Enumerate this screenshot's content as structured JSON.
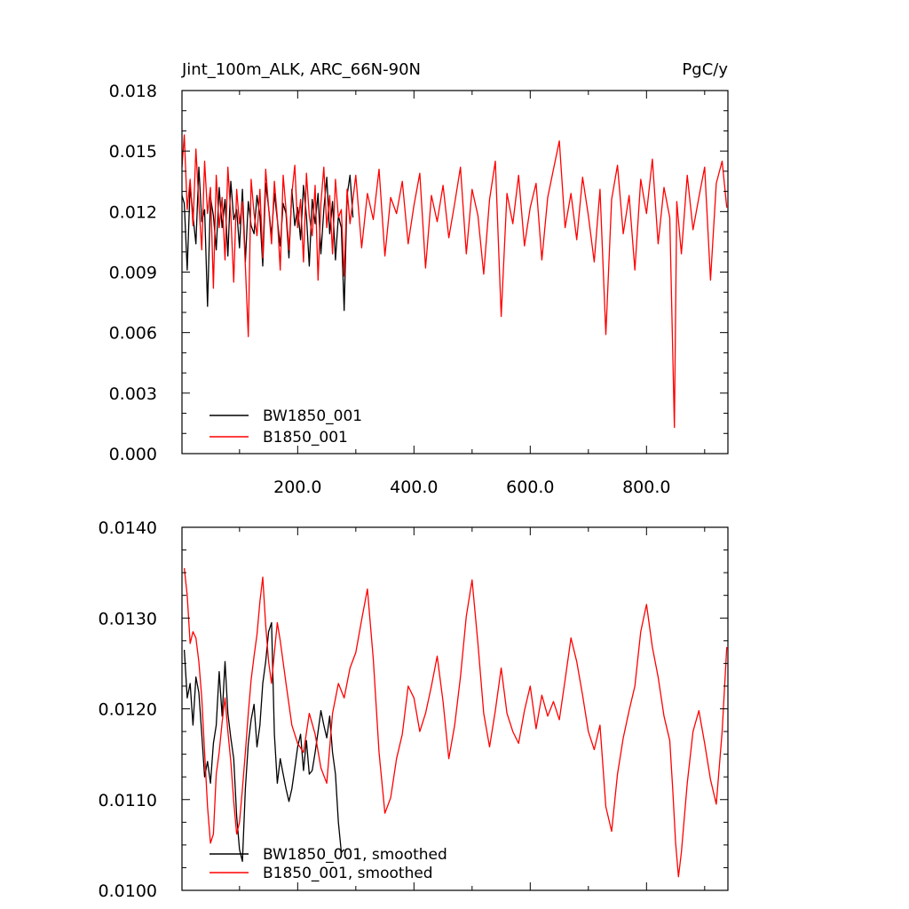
{
  "top_panel": {
    "title_left": "Jint_100m_ALK, ARC_66N-90N",
    "title_right": "PgC/y"
  },
  "colors": {
    "BW1850_001": "#000000",
    "B1850_001": "#ff0000"
  },
  "chart_data": [
    {
      "type": "line",
      "title": "Jint_100m_ALK, ARC_66N-90N",
      "units": "PgC/y",
      "xlim": [
        1,
        940
      ],
      "ylim": [
        0.0,
        0.018
      ],
      "x_ticks": [
        200,
        400,
        600,
        800
      ],
      "x_tick_labels": [
        "200.0",
        "400.0",
        "600.0",
        "800.0"
      ],
      "y_ticks": [
        0.0,
        0.003,
        0.006,
        0.009,
        0.012,
        0.015,
        0.018
      ],
      "y_tick_labels": [
        "0.000",
        "0.003",
        "0.006",
        "0.009",
        "0.012",
        "0.015",
        "0.018"
      ],
      "grid": false,
      "legend": "bottom-left",
      "series": [
        {
          "name": "BW1850_001",
          "x": [
            1,
            5,
            10,
            15,
            20,
            25,
            30,
            35,
            40,
            45,
            50,
            55,
            60,
            65,
            70,
            75,
            80,
            85,
            90,
            95,
            100,
            105,
            110,
            115,
            120,
            125,
            130,
            135,
            140,
            145,
            150,
            155,
            160,
            165,
            170,
            175,
            180,
            185,
            190,
            195,
            200,
            205,
            210,
            215,
            220,
            225,
            230,
            235,
            240,
            245,
            250,
            255,
            260,
            265,
            270,
            275,
            280,
            285,
            290,
            295
          ],
          "values": [
            0.0128,
            0.0124,
            0.0091,
            0.0133,
            0.0118,
            0.0104,
            0.0142,
            0.0115,
            0.0121,
            0.0073,
            0.0127,
            0.0118,
            0.0101,
            0.0132,
            0.0112,
            0.0126,
            0.0098,
            0.0135,
            0.0116,
            0.0121,
            0.0102,
            0.0131,
            0.0095,
            0.0125,
            0.0113,
            0.0109,
            0.0128,
            0.0118,
            0.0093,
            0.0134,
            0.0122,
            0.0108,
            0.0129,
            0.0116,
            0.0103,
            0.0124,
            0.0119,
            0.0097,
            0.0131,
            0.0113,
            0.0122,
            0.0106,
            0.0133,
            0.0118,
            0.0093,
            0.0126,
            0.0114,
            0.0129,
            0.0099,
            0.0121,
            0.0137,
            0.0109,
            0.0125,
            0.0096,
            0.0118,
            0.0112,
            0.0071,
            0.0128,
            0.0138,
            0.0117
          ]
        },
        {
          "name": "B1850_001",
          "x": [
            1,
            5,
            10,
            15,
            20,
            25,
            30,
            35,
            40,
            45,
            50,
            55,
            60,
            65,
            70,
            75,
            80,
            85,
            90,
            95,
            100,
            105,
            110,
            115,
            120,
            125,
            130,
            135,
            140,
            145,
            150,
            155,
            160,
            165,
            170,
            175,
            180,
            185,
            190,
            195,
            200,
            205,
            210,
            215,
            220,
            225,
            230,
            235,
            240,
            245,
            250,
            255,
            260,
            265,
            270,
            275,
            280,
            285,
            290,
            295,
            300,
            310,
            320,
            330,
            340,
            350,
            360,
            370,
            380,
            390,
            400,
            410,
            420,
            430,
            440,
            450,
            460,
            470,
            480,
            490,
            500,
            510,
            520,
            530,
            540,
            550,
            560,
            570,
            580,
            590,
            600,
            610,
            620,
            630,
            640,
            650,
            660,
            670,
            680,
            690,
            700,
            710,
            720,
            730,
            740,
            750,
            760,
            770,
            780,
            790,
            800,
            810,
            820,
            830,
            840,
            848,
            852,
            860,
            870,
            880,
            890,
            900,
            910,
            920,
            930,
            938
          ],
          "values": [
            0.0142,
            0.0158,
            0.0121,
            0.0136,
            0.0113,
            0.0151,
            0.0124,
            0.0101,
            0.0145,
            0.0119,
            0.0132,
            0.0082,
            0.0138,
            0.0112,
            0.0127,
            0.0096,
            0.0142,
            0.0118,
            0.0085,
            0.0131,
            0.0114,
            0.0125,
            0.0093,
            0.0058,
            0.0136,
            0.0119,
            0.0108,
            0.0131,
            0.0097,
            0.0141,
            0.0122,
            0.0104,
            0.0135,
            0.0117,
            0.0091,
            0.0138,
            0.0121,
            0.0101,
            0.0129,
            0.0143,
            0.0112,
            0.0126,
            0.0095,
            0.0139,
            0.0118,
            0.0108,
            0.0133,
            0.0086,
            0.0124,
            0.0142,
            0.0112,
            0.0128,
            0.0099,
            0.0136,
            0.0117,
            0.0121,
            0.0088,
            0.0131,
            0.0114,
            0.0126,
            0.0138,
            0.0102,
            0.0129,
            0.0116,
            0.0141,
            0.0098,
            0.0127,
            0.0119,
            0.0135,
            0.0104,
            0.0123,
            0.0139,
            0.0092,
            0.0128,
            0.0115,
            0.0133,
            0.0107,
            0.0124,
            0.0142,
            0.0099,
            0.0131,
            0.0118,
            0.0089,
            0.0126,
            0.0145,
            0.0068,
            0.0129,
            0.0114,
            0.0138,
            0.0103,
            0.0122,
            0.0134,
            0.0096,
            0.0127,
            0.0141,
            0.0155,
            0.0112,
            0.0129,
            0.0106,
            0.0137,
            0.0118,
            0.0095,
            0.0131,
            0.0059,
            0.0126,
            0.0143,
            0.0109,
            0.0128,
            0.0091,
            0.0136,
            0.0119,
            0.0146,
            0.0104,
            0.0132,
            0.0117,
            0.0013,
            0.0125,
            0.0099,
            0.0138,
            0.0111,
            0.0127,
            0.0142,
            0.0086,
            0.0134,
            0.0145,
            0.0122
          ]
        }
      ]
    },
    {
      "type": "line",
      "xlim": [
        1,
        940
      ],
      "ylim": [
        0.01,
        0.014
      ],
      "y_ticks": [
        0.01,
        0.011,
        0.012,
        0.013,
        0.014
      ],
      "y_tick_labels": [
        "0.0100",
        "0.0110",
        "0.0120",
        "0.0130",
        "0.0140"
      ],
      "grid": false,
      "legend": "bottom-left",
      "series": [
        {
          "name": "BW1850_001, smoothed",
          "x": [
            5,
            10,
            15,
            20,
            25,
            30,
            35,
            40,
            45,
            50,
            55,
            60,
            65,
            70,
            75,
            80,
            85,
            90,
            95,
            100,
            105,
            110,
            115,
            120,
            125,
            130,
            135,
            140,
            145,
            150,
            155,
            160,
            165,
            170,
            175,
            180,
            185,
            190,
            195,
            200,
            205,
            210,
            215,
            220,
            225,
            230,
            235,
            240,
            245,
            250,
            255,
            260,
            265,
            270,
            275,
            280
          ],
          "values": [
            0.01265,
            0.01212,
            0.01228,
            0.01182,
            0.01235,
            0.01218,
            0.01172,
            0.01125,
            0.01142,
            0.01118,
            0.01162,
            0.01182,
            0.01241,
            0.01192,
            0.01252,
            0.01195,
            0.01168,
            0.01145,
            0.01082,
            0.01045,
            0.01032,
            0.01112,
            0.01162,
            0.01188,
            0.01205,
            0.01158,
            0.01182,
            0.01228,
            0.01252,
            0.01285,
            0.01295,
            0.01172,
            0.01118,
            0.01145,
            0.01128,
            0.01112,
            0.01098,
            0.01112,
            0.01135,
            0.01158,
            0.01172,
            0.01132,
            0.01165,
            0.01128,
            0.01132,
            0.01152,
            0.01175,
            0.01198,
            0.01182,
            0.01168,
            0.01192,
            0.01152,
            0.01128,
            0.01075,
            0.01042,
            0.01045
          ]
        },
        {
          "name": "B1850_001, smoothed",
          "x": [
            5,
            10,
            15,
            20,
            25,
            30,
            35,
            40,
            45,
            50,
            55,
            60,
            65,
            70,
            75,
            80,
            85,
            90,
            95,
            100,
            105,
            110,
            115,
            120,
            125,
            130,
            135,
            140,
            145,
            150,
            155,
            160,
            165,
            170,
            180,
            190,
            200,
            210,
            220,
            230,
            240,
            250,
            260,
            270,
            280,
            290,
            300,
            310,
            320,
            330,
            340,
            350,
            360,
            370,
            380,
            390,
            400,
            410,
            420,
            430,
            440,
            450,
            460,
            470,
            480,
            490,
            500,
            510,
            520,
            530,
            540,
            550,
            560,
            570,
            580,
            590,
            600,
            610,
            620,
            630,
            640,
            650,
            660,
            670,
            680,
            690,
            700,
            710,
            720,
            730,
            740,
            750,
            760,
            770,
            780,
            790,
            800,
            810,
            820,
            830,
            840,
            845,
            850,
            855,
            860,
            870,
            880,
            890,
            900,
            910,
            920,
            930,
            938
          ],
          "values": [
            0.01355,
            0.01325,
            0.01272,
            0.01285,
            0.01278,
            0.01252,
            0.01212,
            0.01152,
            0.01092,
            0.01052,
            0.01062,
            0.01128,
            0.01152,
            0.01185,
            0.01212,
            0.01175,
            0.01142,
            0.01098,
            0.01062,
            0.01075,
            0.01112,
            0.01152,
            0.01195,
            0.01232,
            0.01258,
            0.01282,
            0.01318,
            0.01345,
            0.01292,
            0.01252,
            0.01228,
            0.01262,
            0.01295,
            0.01275,
            0.01228,
            0.01182,
            0.01162,
            0.01152,
            0.01195,
            0.01172,
            0.01135,
            0.01118,
            0.01195,
            0.01228,
            0.01212,
            0.01245,
            0.01262,
            0.01298,
            0.01332,
            0.01255,
            0.01152,
            0.01085,
            0.01102,
            0.01145,
            0.01172,
            0.01225,
            0.01212,
            0.01175,
            0.01195,
            0.01225,
            0.01258,
            0.01208,
            0.01145,
            0.01182,
            0.01235,
            0.01302,
            0.01342,
            0.01272,
            0.01195,
            0.01158,
            0.01198,
            0.01245,
            0.01195,
            0.01175,
            0.01162,
            0.01198,
            0.01225,
            0.01178,
            0.01215,
            0.01192,
            0.01208,
            0.01188,
            0.01232,
            0.01278,
            0.01252,
            0.01215,
            0.01175,
            0.01155,
            0.01182,
            0.01092,
            0.01065,
            0.01128,
            0.01168,
            0.01198,
            0.01225,
            0.01285,
            0.01315,
            0.01268,
            0.01235,
            0.01192,
            0.01165,
            0.01112,
            0.01052,
            0.01015,
            0.01042,
            0.01118,
            0.01175,
            0.01198,
            0.01162,
            0.01122,
            0.01095,
            0.01175,
            0.01268
          ]
        }
      ]
    }
  ]
}
